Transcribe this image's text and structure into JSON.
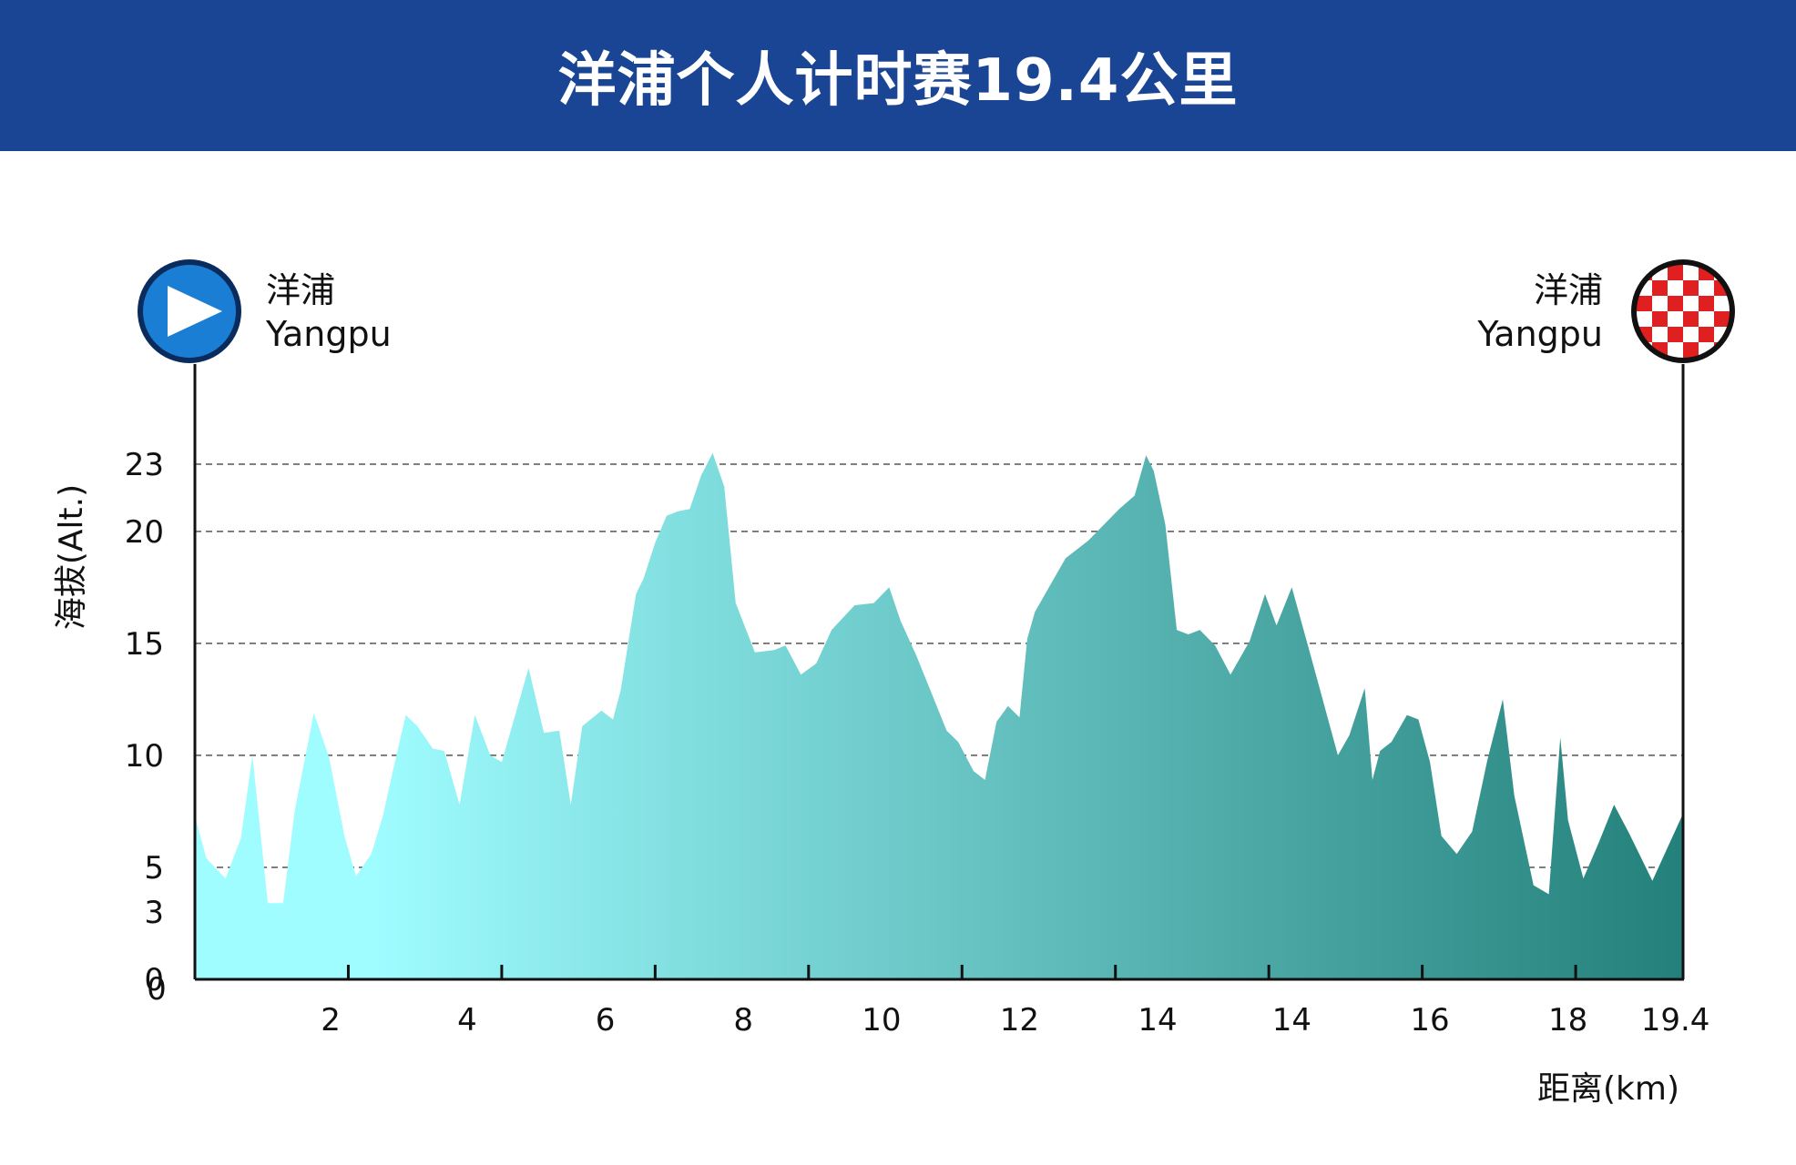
{
  "header": {
    "title": "洋浦个人计时赛19.4公里"
  },
  "start": {
    "name_cn": "洋浦",
    "name_en": "Yangpu",
    "icon": "play-icon",
    "color": "#1a7fd4"
  },
  "finish": {
    "name_cn": "洋浦",
    "name_en": "Yangpu",
    "icon": "checkered-flag-icon",
    "color": "#e02020"
  },
  "colors": {
    "header_bg": "#1a4494",
    "area_start": "#9ffcff",
    "area_end": "#23807a"
  },
  "chart_data": {
    "type": "area",
    "ylabel": "海拔(Alt.)",
    "xlabel": "距离(km)",
    "yticks": [
      0,
      3,
      5,
      10,
      15,
      20,
      23
    ],
    "gridlines_y": [
      3,
      5,
      10,
      15,
      20,
      23
    ],
    "ylim": [
      0,
      23
    ],
    "xlim": [
      0,
      19.4
    ],
    "xtick_labels": [
      "2",
      "4",
      "6",
      "8",
      "10",
      "12",
      "14",
      "14",
      "16",
      "18",
      "19.4"
    ],
    "xtick_positions": [
      2,
      4,
      6,
      8,
      10,
      12,
      14,
      16,
      18,
      19.4
    ],
    "xtick_label_positions": [
      1.77,
      3.55,
      5.35,
      7.15,
      8.95,
      10.75,
      12.55,
      14.3,
      16.1,
      17.9,
      19.3
    ],
    "x": [
      0,
      0.15,
      0.4,
      0.6,
      0.75,
      0.95,
      1.15,
      1.3,
      1.55,
      1.75,
      1.95,
      2.1,
      2.3,
      2.45,
      2.6,
      2.75,
      2.9,
      3.1,
      3.25,
      3.45,
      3.65,
      3.85,
      4.0,
      4.2,
      4.35,
      4.55,
      4.75,
      4.9,
      5.05,
      5.3,
      5.45,
      5.55,
      5.75,
      5.85,
      6.0,
      6.15,
      6.3,
      6.45,
      6.6,
      6.75,
      6.9,
      7.05,
      7.3,
      7.55,
      7.7,
      7.9,
      8.1,
      8.3,
      8.6,
      8.85,
      9.05,
      9.2,
      9.4,
      9.6,
      9.8,
      9.95,
      10.15,
      10.3,
      10.45,
      10.6,
      10.75,
      10.85,
      10.95,
      11.15,
      11.35,
      11.65,
      11.85,
      12.05,
      12.25,
      12.4,
      12.5,
      12.65,
      12.8,
      12.95,
      13.1,
      13.3,
      13.5,
      13.75,
      13.95,
      14.1,
      14.3,
      14.55,
      14.75,
      14.9,
      15.05,
      15.25,
      15.35,
      15.45,
      15.6,
      15.8,
      15.95,
      16.1,
      16.25,
      16.45,
      16.65,
      16.85,
      17.05,
      17.2,
      17.45,
      17.65,
      17.8,
      17.9,
      18.1,
      18.3,
      18.5,
      18.7,
      19.0,
      19.4
    ],
    "y": [
      7.3,
      5.4,
      4.5,
      6.3,
      10.0,
      3.4,
      3.4,
      7.5,
      11.9,
      9.9,
      6.4,
      4.6,
      5.6,
      7.3,
      9.6,
      11.8,
      11.3,
      10.3,
      10.2,
      7.8,
      11.8,
      10.0,
      9.7,
      12.1,
      13.9,
      11.0,
      11.1,
      7.8,
      11.3,
      12.0,
      11.6,
      12.9,
      17.2,
      17.9,
      19.5,
      20.7,
      20.9,
      21.0,
      22.5,
      23.5,
      22.0,
      16.8,
      14.6,
      14.7,
      14.9,
      13.6,
      14.1,
      15.6,
      16.7,
      16.8,
      17.5,
      16.0,
      14.5,
      12.8,
      11.1,
      10.6,
      9.3,
      8.9,
      11.5,
      12.2,
      11.7,
      15.2,
      16.4,
      17.6,
      18.8,
      19.6,
      20.3,
      21.0,
      21.6,
      23.4,
      22.7,
      20.3,
      15.6,
      15.4,
      15.6,
      14.9,
      13.6,
      15.1,
      17.2,
      15.8,
      17.5,
      14.4,
      11.9,
      10.0,
      10.9,
      13.0,
      8.9,
      10.2,
      10.6,
      11.8,
      11.6,
      9.7,
      6.4,
      5.6,
      6.6,
      9.8,
      12.5,
      8.2,
      4.2,
      3.8,
      10.8,
      7.1,
      4.5,
      6.1,
      7.8,
      6.5,
      4.4,
      7.4
    ]
  }
}
